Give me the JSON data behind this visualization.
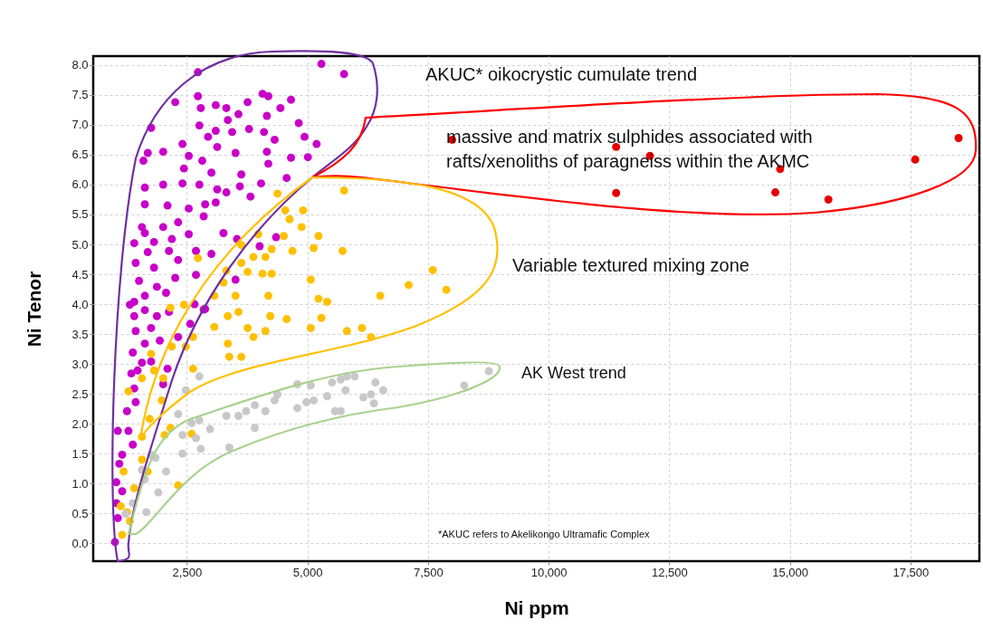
{
  "chart_data": {
    "type": "scatter",
    "xlabel": "Ni ppm",
    "ylabel": "Ni Tenor",
    "xlim": [
      560,
      18930
    ],
    "ylim": [
      -0.3,
      8.15
    ],
    "xticks": [
      {
        "value": 2500,
        "label": "2,500"
      },
      {
        "value": 5000,
        "label": "5,000"
      },
      {
        "value": 7500,
        "label": "7,500"
      },
      {
        "value": 10000,
        "label": "10,000"
      },
      {
        "value": 12500,
        "label": "12,500"
      },
      {
        "value": 15000,
        "label": "15,000"
      },
      {
        "value": 17500,
        "label": "17,500"
      }
    ],
    "yticks": [
      {
        "value": 0,
        "label": "0.0"
      },
      {
        "value": 0.5,
        "label": "0.5"
      },
      {
        "value": 1,
        "label": "1.0"
      },
      {
        "value": 1.5,
        "label": "1.5"
      },
      {
        "value": 2,
        "label": "2.0"
      },
      {
        "value": 2.5,
        "label": "2.5"
      },
      {
        "value": 3,
        "label": "3.0"
      },
      {
        "value": 3.5,
        "label": "3.5"
      },
      {
        "value": 4,
        "label": "4.0"
      },
      {
        "value": 4.5,
        "label": "4.5"
      },
      {
        "value": 5,
        "label": "5.0"
      },
      {
        "value": 5.5,
        "label": "5.5"
      },
      {
        "value": 6,
        "label": "6.0"
      },
      {
        "value": 6.5,
        "label": "6.5"
      },
      {
        "value": 7,
        "label": "7.0"
      },
      {
        "value": 7.5,
        "label": "7.5"
      },
      {
        "value": 8,
        "label": "8.0"
      }
    ],
    "grid": true,
    "marker": "circle",
    "series": [
      {
        "color": "#c800c8",
        "x": [
          5290,
          5760,
          2730,
          2260,
          2730,
          2790,
          3100,
          3320,
          3760,
          4070,
          4190,
          4660,
          4440,
          4160,
          3570,
          3350,
          2760,
          1760,
          3100,
          3440,
          3790,
          4820,
          4100,
          4940,
          5190,
          4320,
          2940,
          3130,
          2410,
          1690,
          2010,
          1600,
          2540,
          2820,
          3510,
          4160,
          4660,
          5010,
          4190,
          2440,
          3010,
          3630,
          4570,
          1630,
          2010,
          2410,
          2760,
          3320,
          3600,
          4040,
          3820,
          3130,
          1630,
          2100,
          2540,
          2880,
          3100,
          2850,
          2010,
          1570,
          2320,
          1630,
          1410,
          1820,
          2190,
          2540,
          1690,
          2130,
          2690,
          3260,
          3540,
          4010,
          4350,
          3010,
          1440,
          1820,
          2320,
          1510,
          1880,
          2260,
          3510,
          2690,
          1410,
          1630,
          2070,
          2850,
          1320,
          1410,
          1630,
          1880,
          2130,
          2660,
          2880,
          2570,
          1440,
          1760,
          1630,
          1940,
          2320,
          1380,
          1570,
          1760,
          1350,
          1480,
          2100,
          2010,
          1410,
          1440,
          1260,
          1070,
          1290,
          1380,
          1160,
          1100,
          1040,
          1160,
          1040,
          1070,
          1010
        ],
        "values": [
          8.02,
          7.85,
          7.88,
          7.38,
          7.48,
          7.28,
          7.33,
          7.28,
          7.38,
          7.52,
          7.48,
          7.42,
          7.28,
          7.15,
          7.18,
          7.08,
          6.99,
          6.95,
          6.9,
          6.88,
          6.93,
          7.03,
          6.88,
          6.8,
          6.68,
          6.75,
          6.8,
          6.63,
          6.68,
          6.53,
          6.55,
          6.4,
          6.48,
          6.4,
          6.53,
          6.55,
          6.45,
          6.46,
          6.35,
          6.27,
          6.2,
          6.17,
          6.11,
          5.95,
          6,
          6.02,
          6,
          5.87,
          5.97,
          6.02,
          5.8,
          5.92,
          5.67,
          5.65,
          5.6,
          5.67,
          5.7,
          5.47,
          5.29,
          5.29,
          5.37,
          5.19,
          5.02,
          5.04,
          5.09,
          5.17,
          4.87,
          4.89,
          4.89,
          5.19,
          5.09,
          4.97,
          5.12,
          4.84,
          4.69,
          4.61,
          4.74,
          4.39,
          4.29,
          4.44,
          4.41,
          4.49,
          4.04,
          4.14,
          4.19,
          3.91,
          3.99,
          3.8,
          3.9,
          3.8,
          3.87,
          4,
          3.92,
          3.67,
          3.55,
          3.6,
          3.34,
          3.39,
          3.45,
          3.19,
          3.02,
          3.04,
          2.84,
          2.89,
          2.92,
          2.66,
          2.59,
          2.36,
          2.21,
          1.88,
          1.88,
          1.65,
          1.48,
          1.33,
          1.02,
          0.87,
          0.67,
          0.42,
          0.02
        ]
      },
      {
        "color": "#ffc000",
        "x": [
          5760,
          4380,
          4540,
          4910,
          4630,
          4880,
          5230,
          3980,
          4510,
          4260,
          4690,
          5130,
          5730,
          3630,
          2730,
          3880,
          4130,
          3630,
          3320,
          3760,
          4070,
          4260,
          5070,
          3260,
          3070,
          3510,
          4190,
          5230,
          5410,
          6510,
          2160,
          2440,
          3350,
          3570,
          3760,
          3880,
          4130,
          4230,
          4570,
          5070,
          5290,
          5820,
          6130,
          6320,
          3350,
          3380,
          3630,
          3070,
          2630,
          2480,
          2190,
          1760,
          1820,
          2010,
          2630,
          1980,
          1570,
          1290,
          1730,
          2160,
          2040,
          2600,
          1570,
          1570,
          1690,
          1410,
          2320,
          1190,
          1130,
          1260,
          1160,
          1320,
          7600,
          7880,
          7100
        ],
        "values": [
          5.9,
          5.85,
          5.57,
          5.57,
          5.42,
          5.29,
          5.14,
          5.17,
          5.14,
          4.92,
          4.89,
          4.94,
          4.89,
          4.99,
          4.77,
          4.79,
          4.79,
          4.69,
          4.56,
          4.54,
          4.51,
          4.51,
          4.41,
          4.36,
          4.14,
          4.14,
          4.14,
          4.09,
          4.04,
          4.14,
          3.94,
          3.99,
          3.8,
          3.87,
          3.6,
          3.45,
          3.55,
          3.8,
          3.75,
          3.6,
          3.77,
          3.55,
          3.6,
          3.45,
          3.34,
          3.12,
          3.12,
          3.62,
          3.45,
          3.29,
          3.29,
          3.17,
          2.89,
          2.76,
          2.92,
          2.39,
          2.76,
          2.54,
          2.08,
          1.93,
          1.81,
          1.83,
          1.78,
          1.4,
          1.2,
          0.92,
          0.97,
          1.2,
          0.62,
          0.52,
          0.14,
          0.37,
          4.57,
          4.24,
          4.32
        ]
      },
      {
        "color": "#c8c8c8",
        "x": [
          2760,
          2480,
          2320,
          2410,
          2600,
          2760,
          2980,
          2690,
          2790,
          2410,
          3320,
          3570,
          3730,
          3910,
          3910,
          4130,
          4320,
          4380,
          3380,
          4790,
          4790,
          5070,
          4980,
          5130,
          5410,
          5510,
          5690,
          5820,
          5980,
          5790,
          5570,
          5690,
          6160,
          6320,
          6380,
          6410,
          6570,
          1760,
          1850,
          1570,
          1630,
          2070,
          1910,
          1660,
          1380,
          1230,
          8250,
          8760
        ],
        "values": [
          2.79,
          2.56,
          2.16,
          1.81,
          2.01,
          2.06,
          1.91,
          1.76,
          1.58,
          1.5,
          2.13,
          2.13,
          2.21,
          2.31,
          1.93,
          2.21,
          2.39,
          2.49,
          1.6,
          2.26,
          2.66,
          2.64,
          2.36,
          2.39,
          2.46,
          2.69,
          2.74,
          2.79,
          2.79,
          2.56,
          2.21,
          2.21,
          2.44,
          2.49,
          2.34,
          2.69,
          2.56,
          1.48,
          1.43,
          1.23,
          1.07,
          1.2,
          0.85,
          0.52,
          0.67,
          0.49,
          2.64,
          2.88
        ]
      },
      {
        "color": "#e60000",
        "x": [
          8000,
          11400,
          12100,
          14800,
          11400,
          14700,
          15800,
          17600,
          18500
        ],
        "values": [
          6.75,
          6.63,
          6.48,
          6.26,
          5.86,
          5.87,
          5.75,
          6.42,
          6.78
        ]
      }
    ],
    "annotations": [
      "AKUC* oikocrystic cumulate trend",
      "massive and matrix sulphides associated with\nrafts/xenoliths of paragneiss within the AKMC",
      "Variable textured mixing zone",
      "AK West trend",
      "*AKUC refers to Akelikongo Ultramafic Complex"
    ]
  }
}
